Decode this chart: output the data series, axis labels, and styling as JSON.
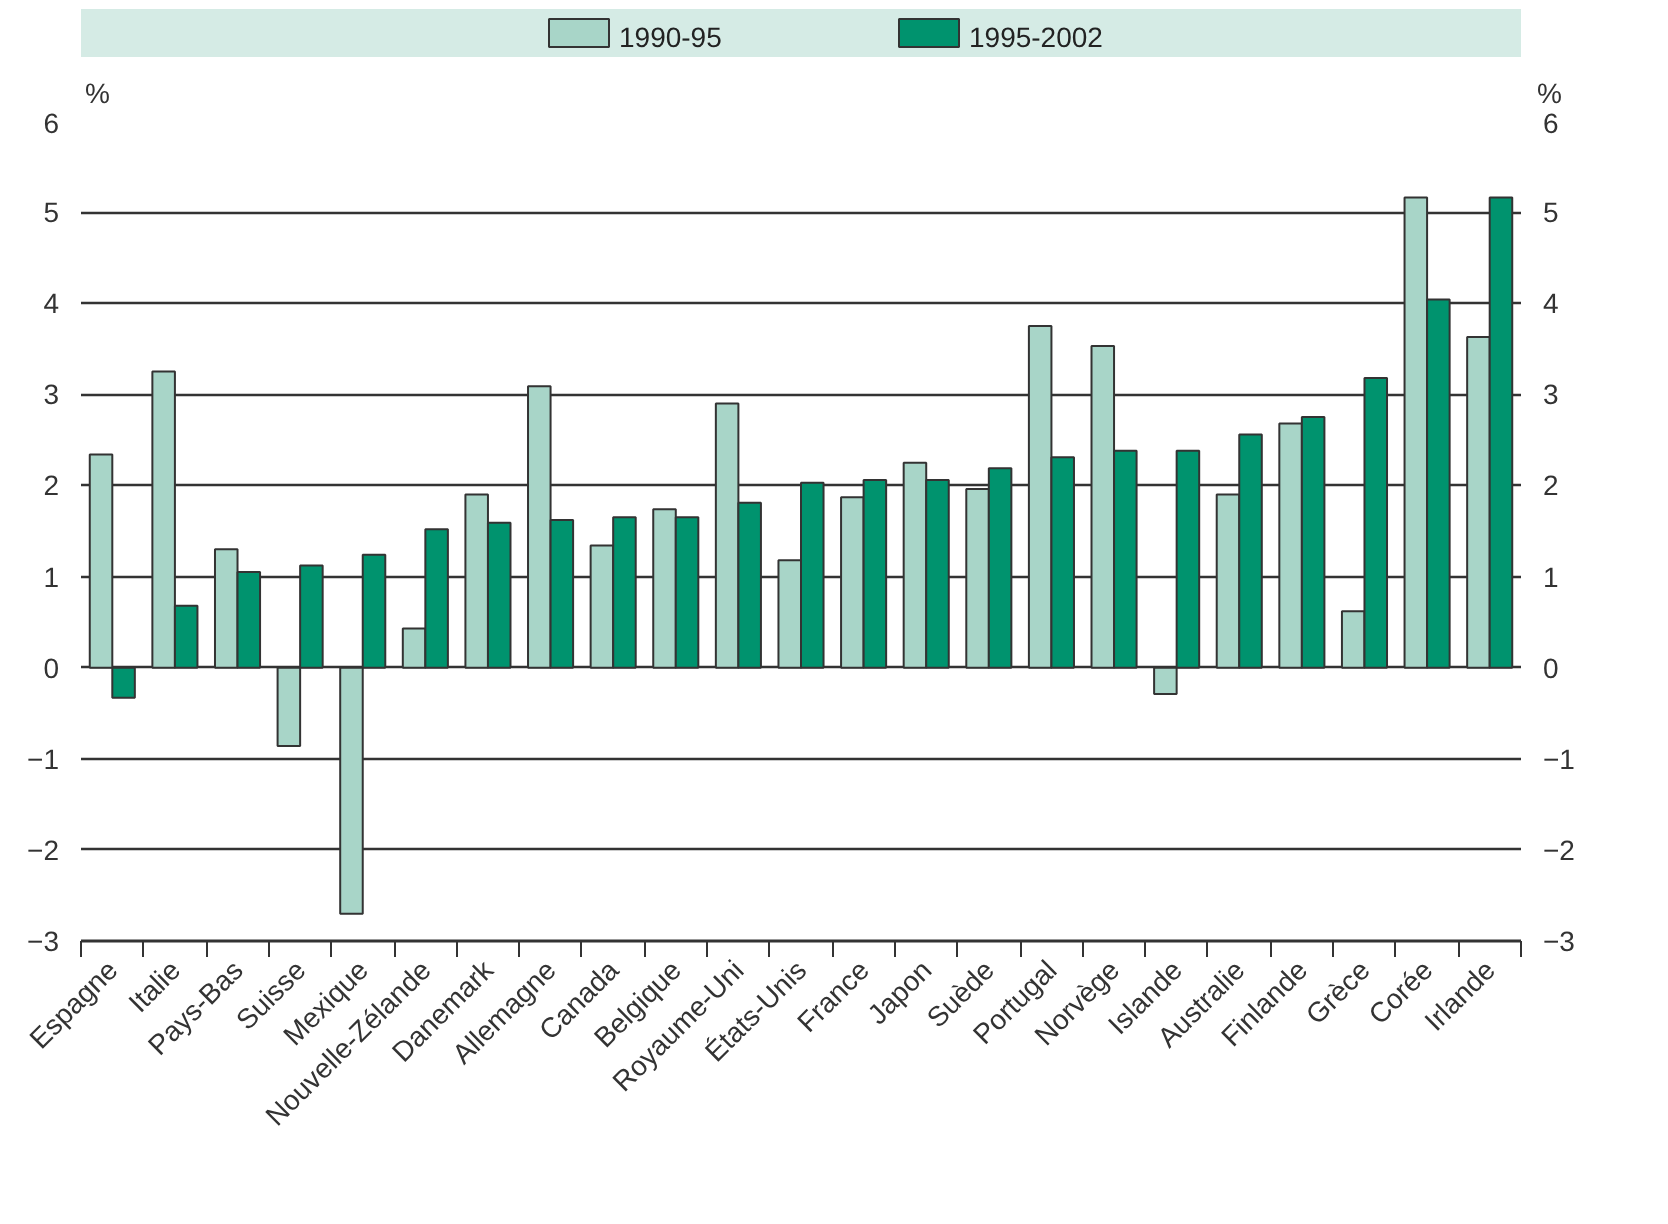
{
  "chart_data": {
    "type": "bar",
    "categories": [
      "Espagne",
      "Italie",
      "Pays-Bas",
      "Suisse",
      "Mexique",
      "Nouvelle-Zélande",
      "Danemark",
      "Allemagne",
      "Canada",
      "Belgique",
      "Royaume-Uni",
      "États-Unis",
      "France",
      "Japon",
      "Suède",
      "Portugal",
      "Norvège",
      "Islande",
      "Australie",
      "Finlande",
      "Grèce",
      "Corée",
      "Irlande"
    ],
    "series": [
      {
        "name": "1990-95",
        "color": "#a8d5c8",
        "values": [
          2.34,
          3.25,
          1.3,
          -0.86,
          -2.7,
          0.43,
          1.9,
          3.09,
          1.34,
          1.74,
          2.9,
          1.18,
          1.87,
          2.25,
          1.96,
          3.75,
          3.53,
          -0.29,
          1.9,
          2.68,
          0.62,
          5.16,
          3.63
        ]
      },
      {
        "name": "1995-2002",
        "color": "#00936e",
        "values": [
          -0.33,
          0.68,
          1.05,
          1.12,
          1.24,
          1.52,
          1.59,
          1.62,
          1.65,
          1.65,
          1.81,
          2.03,
          2.06,
          2.06,
          2.19,
          2.31,
          2.38,
          2.38,
          2.56,
          2.75,
          3.18,
          4.04,
          5.16
        ]
      }
    ],
    "ylabel": "%",
    "y2label": "%",
    "ylim": [
      -3,
      6
    ],
    "yticks": [
      -3,
      -2,
      -1,
      0,
      1,
      2,
      3,
      4,
      5,
      6
    ],
    "y2lim": [
      -3,
      6
    ],
    "y2ticks": [
      -3,
      -2,
      -1,
      0,
      1,
      2,
      3,
      4,
      5,
      6
    ],
    "grid": "y",
    "legend": "top"
  }
}
